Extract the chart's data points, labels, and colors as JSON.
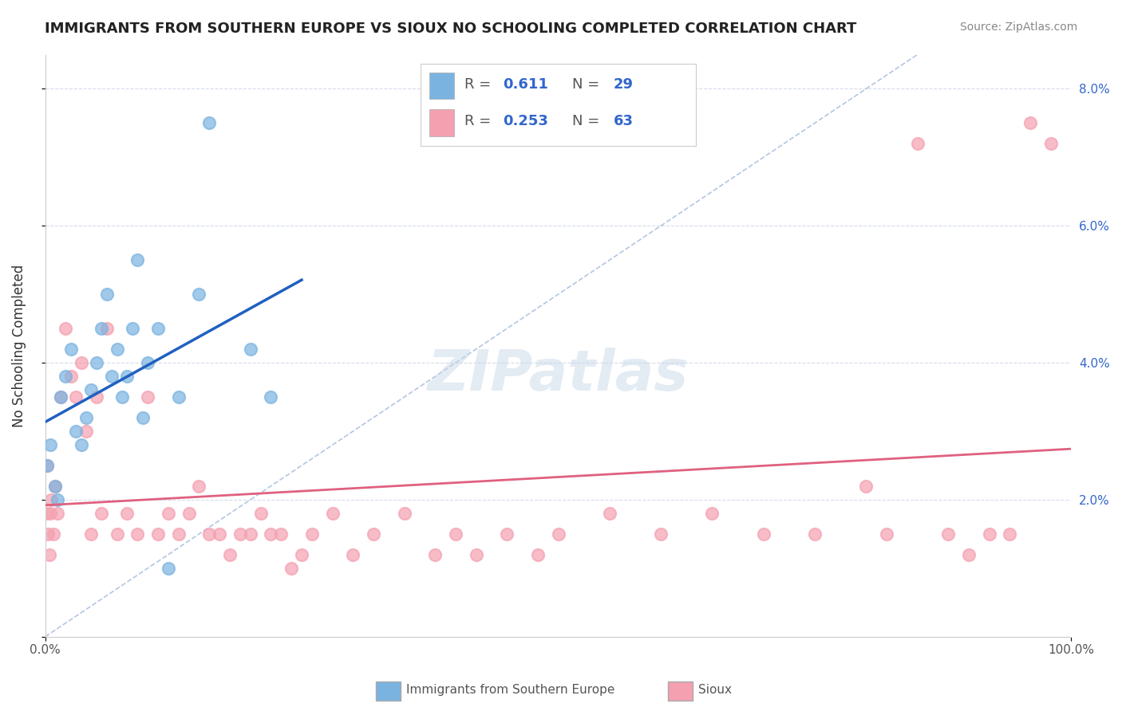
{
  "title": "IMMIGRANTS FROM SOUTHERN EUROPE VS SIOUX NO SCHOOLING COMPLETED CORRELATION CHART",
  "source": "Source: ZipAtlas.com",
  "ylabel": "No Schooling Completed",
  "legend_label_blue": "Immigrants from Southern Europe",
  "legend_label_pink": "Sioux",
  "R_blue": 0.611,
  "N_blue": 29,
  "R_pink": 0.253,
  "N_pink": 63,
  "blue_scatter_x": [
    0.2,
    0.5,
    1.0,
    1.2,
    1.5,
    2.0,
    2.5,
    3.0,
    3.5,
    4.0,
    4.5,
    5.0,
    5.5,
    6.0,
    6.5,
    7.0,
    7.5,
    8.0,
    8.5,
    9.0,
    9.5,
    10.0,
    11.0,
    12.0,
    13.0,
    15.0,
    16.0,
    20.0,
    22.0
  ],
  "blue_scatter_y": [
    2.5,
    2.8,
    2.2,
    2.0,
    3.5,
    3.8,
    4.2,
    3.0,
    2.8,
    3.2,
    3.6,
    4.0,
    4.5,
    5.0,
    3.8,
    4.2,
    3.5,
    3.8,
    4.5,
    5.5,
    3.2,
    4.0,
    4.5,
    1.0,
    3.5,
    5.0,
    7.5,
    4.2,
    3.5
  ],
  "pink_scatter_x": [
    0.1,
    0.2,
    0.3,
    0.4,
    0.5,
    0.6,
    0.8,
    1.0,
    1.2,
    1.5,
    2.0,
    2.5,
    3.0,
    3.5,
    4.0,
    4.5,
    5.0,
    5.5,
    6.0,
    7.0,
    8.0,
    9.0,
    10.0,
    11.0,
    12.0,
    13.0,
    14.0,
    15.0,
    16.0,
    17.0,
    18.0,
    19.0,
    20.0,
    21.0,
    22.0,
    23.0,
    24.0,
    25.0,
    26.0,
    28.0,
    30.0,
    32.0,
    35.0,
    38.0,
    40.0,
    42.0,
    45.0,
    48.0,
    50.0,
    55.0,
    60.0,
    65.0,
    70.0,
    75.0,
    80.0,
    82.0,
    85.0,
    88.0,
    90.0,
    92.0,
    94.0,
    96.0,
    98.0
  ],
  "pink_scatter_y": [
    1.8,
    2.5,
    1.5,
    1.2,
    1.8,
    2.0,
    1.5,
    2.2,
    1.8,
    3.5,
    4.5,
    3.8,
    3.5,
    4.0,
    3.0,
    1.5,
    3.5,
    1.8,
    4.5,
    1.5,
    1.8,
    1.5,
    3.5,
    1.5,
    1.8,
    1.5,
    1.8,
    2.2,
    1.5,
    1.5,
    1.2,
    1.5,
    1.5,
    1.8,
    1.5,
    1.5,
    1.0,
    1.2,
    1.5,
    1.8,
    1.2,
    1.5,
    1.8,
    1.2,
    1.5,
    1.2,
    1.5,
    1.2,
    1.5,
    1.8,
    1.5,
    1.8,
    1.5,
    1.5,
    2.2,
    1.5,
    7.2,
    1.5,
    1.2,
    1.5,
    1.5,
    7.5,
    7.2
  ],
  "blue_color": "#7ab3e0",
  "pink_color": "#f4a0b0",
  "blue_line_color": "#2060c0",
  "pink_line_color": "#e06080",
  "diagonal_color": "#a0b8d8",
  "background_color": "#ffffff",
  "grid_color": "#d0d8e8",
  "watermark": "ZIPatlas",
  "watermark_color": "#c8d8e8",
  "xlim": [
    0,
    100
  ],
  "ylim": [
    0,
    8.5
  ]
}
